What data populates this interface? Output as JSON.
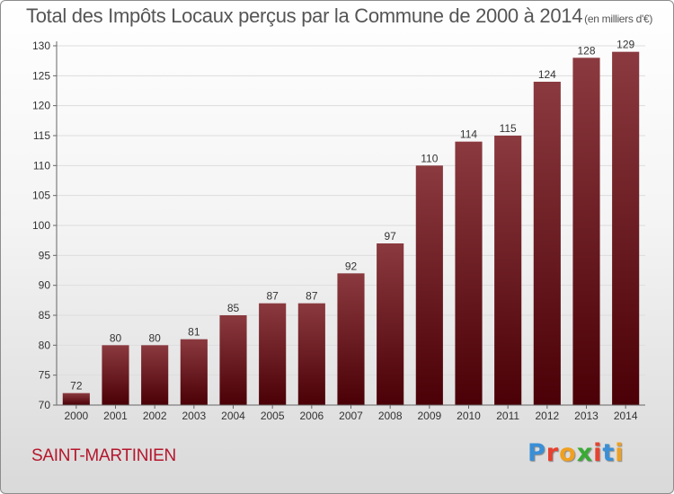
{
  "title": "Total des Impôts Locaux perçus par la Commune de 2000 à 2014",
  "title_unit": "(en milliers d'€)",
  "commune": "SAINT-MARTINIEN",
  "logo": {
    "letters": [
      "P",
      "r",
      "o",
      "x",
      "i",
      "t",
      "i"
    ],
    "colors": [
      "#3a8fd6",
      "#e8412f",
      "#f0a020",
      "#3aaa35",
      "#e8412f",
      "#3a8fd6",
      "#f0a020"
    ]
  },
  "colors": {
    "bar_top": "#8b3a3f",
    "bar_bottom": "#4a0006",
    "axis": "#666666",
    "grid": "#dddddd"
  },
  "chart_data": {
    "type": "bar",
    "title": "Total des Impôts Locaux perçus par la Commune de 2000 à 2014",
    "xlabel": "",
    "ylabel": "",
    "categories": [
      "2000",
      "2001",
      "2002",
      "2003",
      "2004",
      "2005",
      "2006",
      "2007",
      "2008",
      "2009",
      "2010",
      "2011",
      "2012",
      "2013",
      "2014"
    ],
    "values": [
      72,
      80,
      80,
      81,
      85,
      87,
      87,
      92,
      97,
      110,
      114,
      115,
      124,
      128,
      129
    ],
    "ylim": [
      70,
      130
    ],
    "yticks": [
      70,
      75,
      80,
      85,
      90,
      95,
      100,
      105,
      110,
      115,
      120,
      125,
      130
    ],
    "grid": true
  }
}
